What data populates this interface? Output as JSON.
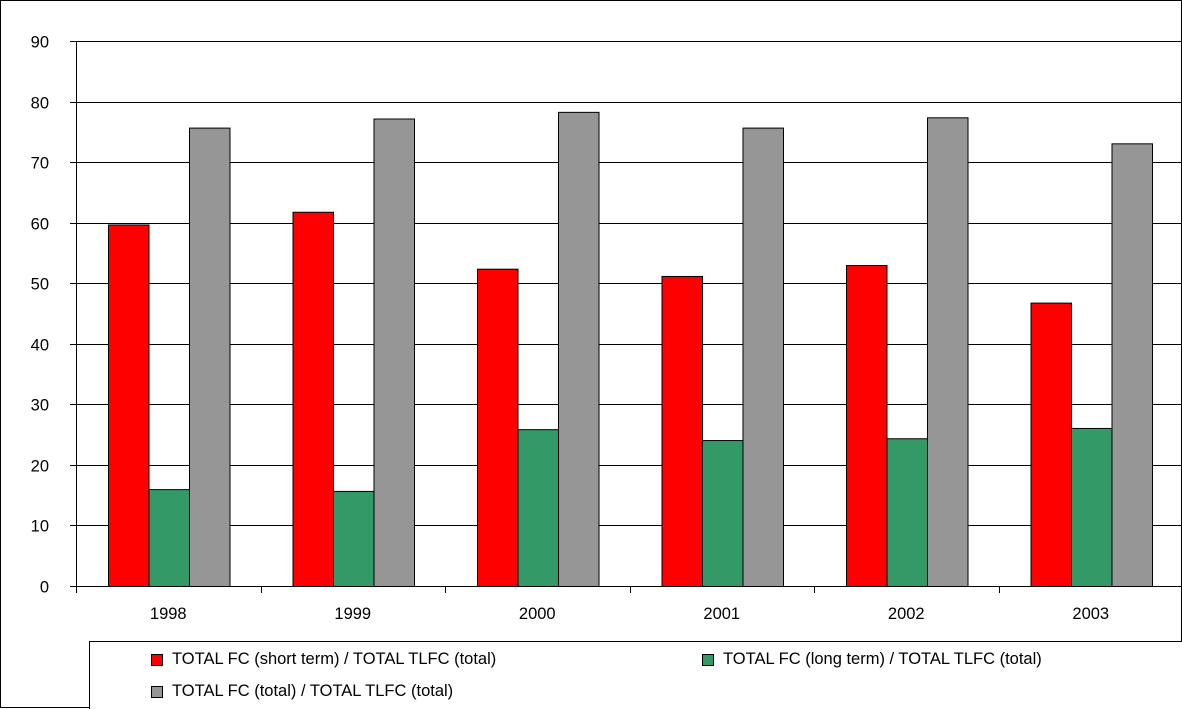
{
  "chart_data": {
    "type": "bar",
    "categories": [
      "1998",
      "1999",
      "2000",
      "2001",
      "2002",
      "2003"
    ],
    "series": [
      {
        "name": "TOTAL FC (short term) / TOTAL TLFC (total)",
        "color": "#ff0000",
        "values": [
          59.7,
          61.8,
          52.4,
          51.2,
          53.0,
          46.8
        ]
      },
      {
        "name": "TOTAL FC (long term) / TOTAL TLFC (total)",
        "color": "#339966",
        "values": [
          16.0,
          15.7,
          25.9,
          24.1,
          24.4,
          26.1
        ]
      },
      {
        "name": "TOTAL FC (total) / TOTAL TLFC (total)",
        "color": "#969696",
        "values": [
          75.7,
          77.2,
          78.3,
          75.7,
          77.4,
          73.1
        ]
      }
    ],
    "ylim": [
      0,
      90
    ],
    "yticks": [
      "0",
      "10",
      "20",
      "30",
      "40",
      "50",
      "60",
      "70",
      "80",
      "90"
    ],
    "grid": true,
    "legend_position": "bottom"
  }
}
